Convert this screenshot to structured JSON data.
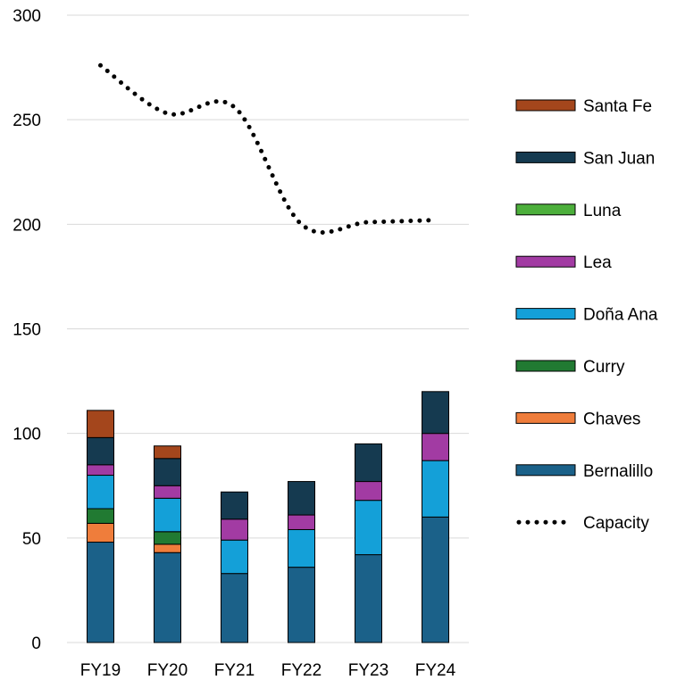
{
  "chart_data": {
    "type": "bar",
    "stacked": true,
    "title": "",
    "xlabel": "",
    "ylabel": "",
    "categories": [
      "FY19",
      "FY20",
      "FY21",
      "FY22",
      "FY23",
      "FY24"
    ],
    "ylim": [
      0,
      300
    ],
    "yticks": [
      0,
      50,
      100,
      150,
      200,
      250,
      300
    ],
    "grid": true,
    "legend_position": "right",
    "series": [
      {
        "name": "Bernalillo",
        "color": "#1b6189",
        "values": [
          48,
          43,
          33,
          36,
          42,
          60
        ]
      },
      {
        "name": "Chaves",
        "color": "#ef7d3b",
        "values": [
          9,
          4,
          0,
          0,
          0,
          0
        ]
      },
      {
        "name": "Curry",
        "color": "#217a32",
        "values": [
          7,
          6,
          0,
          0,
          0,
          0
        ]
      },
      {
        "name": "Doña Ana",
        "color": "#14a0d8",
        "values": [
          16,
          16,
          16,
          18,
          26,
          27
        ]
      },
      {
        "name": "Lea",
        "color": "#a23ba3",
        "values": [
          5,
          6,
          10,
          7,
          9,
          13
        ]
      },
      {
        "name": "Luna",
        "color": "#4caf3b",
        "values": [
          0,
          0,
          0,
          0,
          0,
          0
        ]
      },
      {
        "name": "San Juan",
        "color": "#153a50",
        "values": [
          13,
          13,
          13,
          16,
          18,
          20
        ]
      },
      {
        "name": "Santa Fe",
        "color": "#a4461c",
        "values": [
          13,
          6,
          0,
          0,
          0,
          0
        ]
      }
    ],
    "line_series": {
      "name": "Capacity",
      "color": "#000000",
      "style": "dotted",
      "values": [
        276,
        253,
        256,
        200,
        201,
        202
      ]
    },
    "legend_order": [
      "Santa Fe",
      "San Juan",
      "Luna",
      "Lea",
      "Doña Ana",
      "Curry",
      "Chaves",
      "Bernalillo",
      "Capacity"
    ]
  }
}
